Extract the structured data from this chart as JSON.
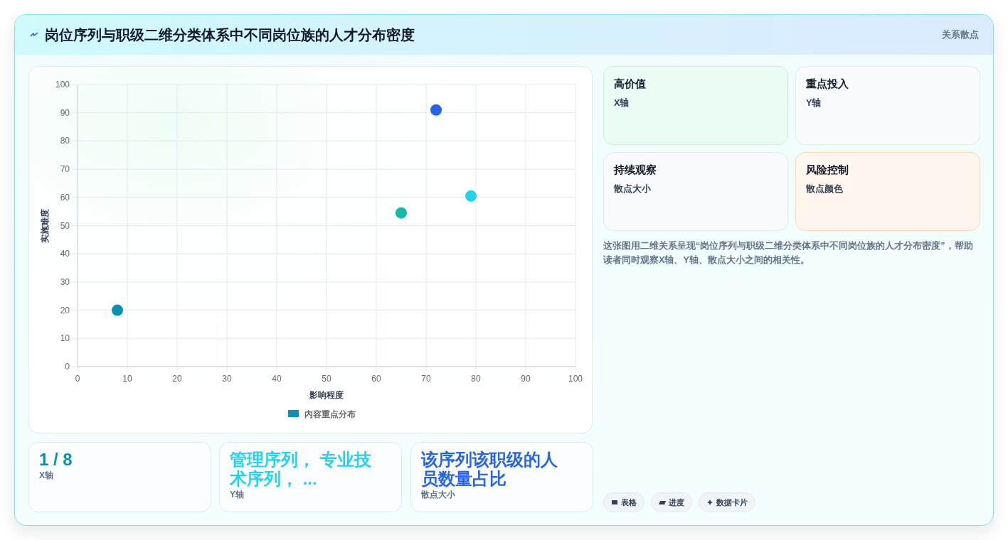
{
  "chart_data": [
    {
      "type": "other",
      "title": "岗位序列与职级二维分类体系中不同岗位族的人才分布密度",
      "subtitle": "关系散点"
    },
    {
      "type": "scatter",
      "xlabel": "影响程度",
      "ylabel": "实施难度",
      "xlim": [
        0,
        100
      ],
      "ylim": [
        0,
        100
      ],
      "xticks": [
        0,
        10,
        20,
        30,
        40,
        50,
        60,
        70,
        80,
        90,
        100
      ],
      "yticks": [
        0,
        10,
        20,
        30,
        40,
        50,
        60,
        70,
        80,
        90,
        100
      ],
      "grid": true,
      "legend": "bottom",
      "marker": "circle",
      "x": [
        8,
        65,
        72,
        79
      ],
      "series": [
        {
          "name": "内容重点分布",
          "color": "#0891b2",
          "colors": [
            "#0891b2",
            "#14b8a6",
            "#2563eb",
            "#22d3ee"
          ],
          "values": [
            20,
            54.5,
            91,
            60.5
          ]
        }
      ]
    },
    {
      "type": "other",
      "title": "高价值",
      "subtitle": "X轴"
    },
    {
      "type": "other",
      "title": "重点投入",
      "subtitle": "Y轴"
    },
    {
      "type": "other",
      "title": "持续观察",
      "subtitle": "散点大小"
    },
    {
      "type": "other",
      "title": "风险控制",
      "subtitle": "散点颜色"
    },
    {
      "type": "other",
      "annotations": [
        "这张图用二维关系呈现“岗位序列与职级二维分类体系中不同岗位族的人才分布密度”，帮助读者同时观察X轴、Y轴、散点大小之间的相关性。"
      ]
    },
    {
      "type": "other",
      "title": "1 / 8",
      "subtitle": "X轴"
    },
    {
      "type": "other",
      "title": "管理序列， 专业技术序列， ...",
      "subtitle": "Y轴"
    },
    {
      "type": "other",
      "title": "该序列该职级的人员数量占比",
      "subtitle": "散点大小"
    },
    {
      "type": "other",
      "annotations": [
        "表格",
        "进度",
        "数据卡片"
      ]
    }
  ]
}
